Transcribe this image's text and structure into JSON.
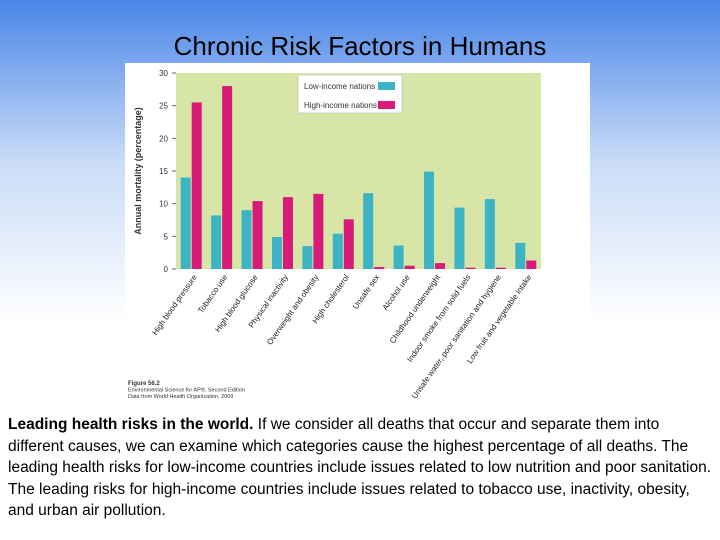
{
  "slide_title": "Chronic Risk Factors in Humans",
  "chart_data": {
    "type": "bar",
    "ylabel": "Annual mortality (percentage)",
    "categories": [
      "High blood pressure",
      "Tobacco use",
      "High blood glucose",
      "Physical inactivity",
      "Overweight and obesity",
      "High cholesterol",
      "Unsafe sex",
      "Alcohol use",
      "Childhood underweight",
      "Indoor smoke from solid fuels",
      "Unsafe water, poor sanitation and hygiene",
      "Low fruit and vegetable intake"
    ],
    "series": [
      {
        "name": "Low-income nations",
        "color": "#3cb4c4",
        "values": [
          14,
          8.2,
          9,
          4.9,
          3.5,
          5.4,
          11.6,
          3.6,
          14.9,
          9.4,
          10.7,
          4
        ]
      },
      {
        "name": "High-income nations",
        "color": "#d81b78",
        "values": [
          25.5,
          28,
          10.4,
          11,
          11.5,
          7.6,
          0.3,
          0.5,
          0.9,
          0.2,
          0.2,
          1.3
        ]
      }
    ],
    "ylim": [
      0,
      30
    ],
    "yticks": [
      0,
      5,
      10,
      15,
      20,
      25,
      30
    ],
    "legend": "upper center",
    "notes": [
      "Figure 56.2",
      "Environmental Science for AP®, Second Edition",
      "Data from World Health Organization, 2009"
    ]
  },
  "caption_lead": "Leading health risks in the world.",
  "caption_body": "If we consider all deaths that occur and separate them into different causes, we can examine which categories cause the highest percentage of all deaths. The leading health risks for low-income countries include issues related to low nutrition and poor sanitation. The leading risks for high-income countries include issues related to tobacco use, inactivity, obesity, and urban air pollution."
}
